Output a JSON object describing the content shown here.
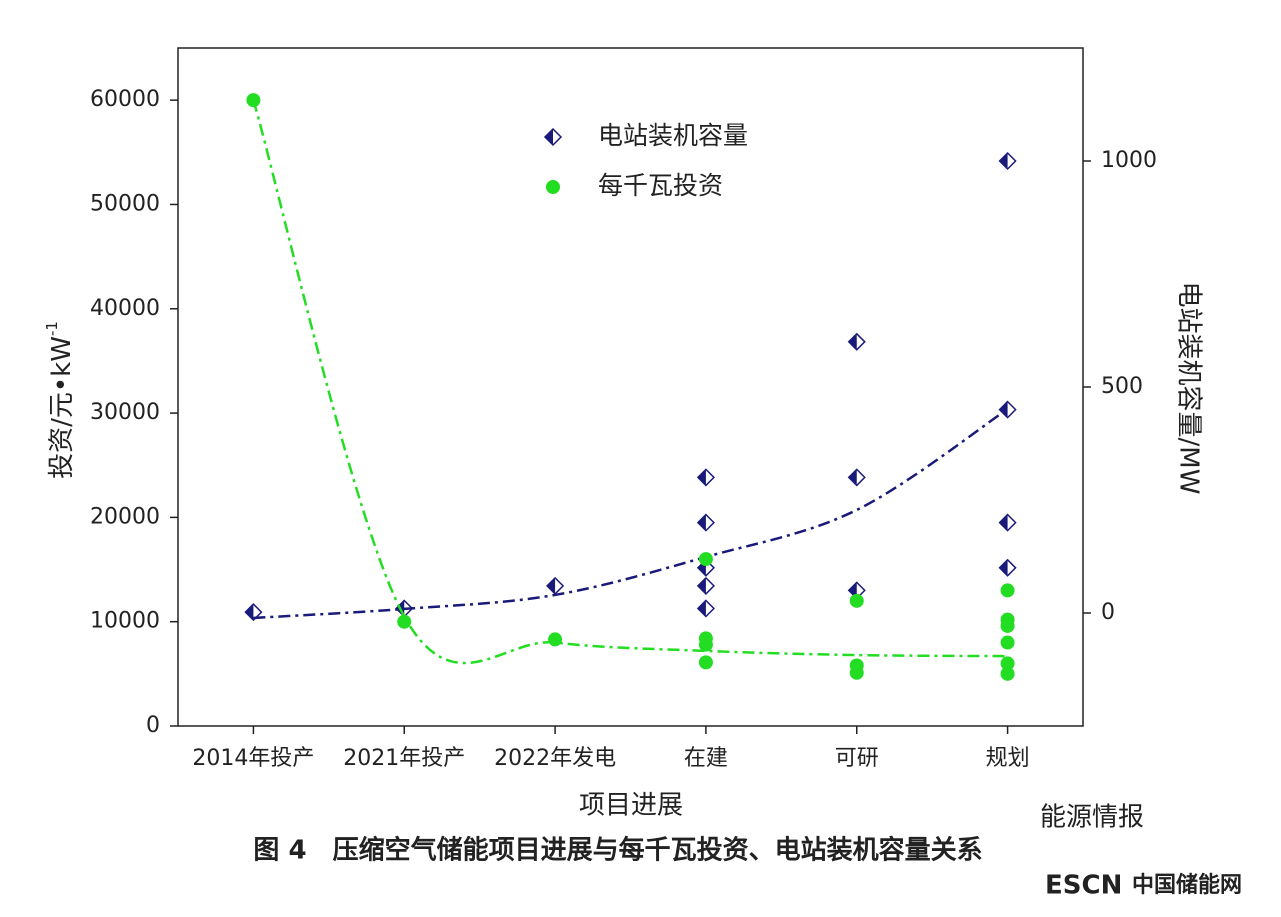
{
  "chart_data": {
    "type": "scatter",
    "categories": [
      "2014年投产",
      "2021年投产",
      "2022年发电",
      "在建",
      "可研",
      "规划"
    ],
    "x_label": "项目进展",
    "y_label": {
      "text": "投资/元•kW",
      "superscript": "-1"
    },
    "y2_label": "电站装机容量/MW",
    "ylim": [
      0,
      65000
    ],
    "yticks": [
      0,
      10000,
      20000,
      30000,
      40000,
      50000,
      60000
    ],
    "y2lim": [
      -250,
      1250
    ],
    "y2ticks": [
      0,
      500,
      1000
    ],
    "legend": "top-center",
    "series": [
      {
        "name": "电站装机容量",
        "color": "#1a1a7a",
        "marker": "half-diamond",
        "axis": "y2",
        "values": [
          [
            2
          ],
          [
            10
          ],
          [
            60
          ],
          [
            300,
            200,
            100,
            60,
            10
          ],
          [
            600,
            300,
            50
          ],
          [
            1000,
            450,
            200,
            100
          ]
        ],
        "trend": [
          -11,
          9,
          40,
          124,
          228,
          451
        ]
      },
      {
        "name": "每千瓦投资",
        "color": "#22dd22",
        "marker": "circle",
        "axis": "y",
        "values": [
          [
            60000
          ],
          [
            10000
          ],
          [
            8300
          ],
          [
            16000,
            8400,
            7800,
            6100
          ],
          [
            12000,
            5800,
            5100
          ],
          [
            13000,
            10200,
            9600,
            8000,
            6000,
            5000
          ]
        ],
        "trend": [
          60000,
          10500,
          8000,
          7200,
          6800,
          6700
        ]
      }
    ]
  },
  "caption": "图 4　压缩空气储能项目进展与每千瓦投资、电站装机容量关系",
  "watermark": "能源情报",
  "logo": {
    "prefix": "ESCN",
    "text": "中国储能网"
  }
}
